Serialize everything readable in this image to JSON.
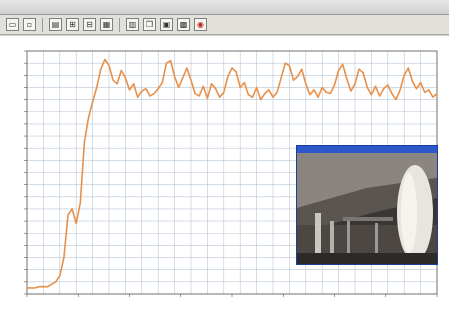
{
  "window": {
    "title": ""
  },
  "toolbar": {
    "buttons": [
      "open-icon",
      "save-icon",
      "print-icon",
      "zoom-in-icon",
      "zoom-out-icon",
      "grid-icon",
      "table-icon",
      "copy-icon",
      "paste-icon",
      "chart-icon",
      "marker-icon",
      "record-icon"
    ]
  },
  "colors": {
    "line": "#e8904a",
    "grid": "#b8c6d4",
    "axis": "#555555",
    "inset_title": "#2e57c9"
  },
  "chart_data": {
    "type": "line",
    "title": "",
    "xlabel": "",
    "ylabel": "",
    "ylim": [
      0,
      20
    ],
    "xlim": [
      0,
      100
    ],
    "grid": true,
    "series": [
      {
        "values": [
          [
            0,
            0.5
          ],
          [
            1,
            0.5
          ],
          [
            2,
            0.5
          ],
          [
            3,
            0.6
          ],
          [
            4,
            0.6
          ],
          [
            5,
            0.6
          ],
          [
            6,
            0.8
          ],
          [
            7,
            1.0
          ],
          [
            8,
            1.5
          ],
          [
            9,
            3.0
          ],
          [
            10,
            6.5
          ],
          [
            11,
            7.0
          ],
          [
            12,
            5.8
          ],
          [
            13,
            7.5
          ],
          [
            14,
            12.5
          ],
          [
            15,
            14.5
          ],
          [
            16,
            15.8
          ],
          [
            17,
            17.0
          ],
          [
            18,
            18.5
          ],
          [
            19,
            19.3
          ],
          [
            20,
            18.8
          ],
          [
            21,
            17.6
          ],
          [
            22,
            17.3
          ],
          [
            23,
            18.4
          ],
          [
            24,
            17.8
          ],
          [
            25,
            16.8
          ],
          [
            26,
            17.3
          ],
          [
            27,
            16.2
          ],
          [
            28,
            16.7
          ],
          [
            29,
            16.9
          ],
          [
            30,
            16.3
          ],
          [
            31,
            16.5
          ],
          [
            32,
            16.9
          ],
          [
            33,
            17.4
          ],
          [
            34,
            19.0
          ],
          [
            35,
            19.2
          ],
          [
            36,
            17.9
          ],
          [
            37,
            17.0
          ],
          [
            38,
            17.8
          ],
          [
            39,
            18.6
          ],
          [
            40,
            17.6
          ],
          [
            41,
            16.5
          ],
          [
            42,
            16.3
          ],
          [
            43,
            17.1
          ],
          [
            44,
            16.1
          ],
          [
            45,
            17.3
          ],
          [
            46,
            16.9
          ],
          [
            47,
            16.2
          ],
          [
            48,
            16.6
          ],
          [
            49,
            17.9
          ],
          [
            50,
            18.6
          ],
          [
            51,
            18.3
          ],
          [
            52,
            17.0
          ],
          [
            53,
            17.4
          ],
          [
            54,
            16.4
          ],
          [
            55,
            16.2
          ],
          [
            56,
            17.0
          ],
          [
            57,
            16.0
          ],
          [
            58,
            16.5
          ],
          [
            59,
            16.8
          ],
          [
            60,
            16.2
          ],
          [
            61,
            16.6
          ],
          [
            62,
            17.8
          ],
          [
            63,
            19.0
          ],
          [
            64,
            18.8
          ],
          [
            65,
            17.6
          ],
          [
            66,
            17.9
          ],
          [
            67,
            18.5
          ],
          [
            68,
            17.3
          ],
          [
            69,
            16.4
          ],
          [
            70,
            16.8
          ],
          [
            71,
            16.2
          ],
          [
            72,
            17.0
          ],
          [
            73,
            16.6
          ],
          [
            74,
            16.5
          ],
          [
            75,
            17.2
          ],
          [
            76,
            18.4
          ],
          [
            77,
            18.9
          ],
          [
            78,
            17.7
          ],
          [
            79,
            16.7
          ],
          [
            80,
            17.3
          ],
          [
            81,
            18.5
          ],
          [
            82,
            18.2
          ],
          [
            83,
            17.0
          ],
          [
            84,
            16.4
          ],
          [
            85,
            17.1
          ],
          [
            86,
            16.3
          ],
          [
            87,
            16.9
          ],
          [
            88,
            17.2
          ],
          [
            89,
            16.5
          ],
          [
            90,
            16.0
          ],
          [
            91,
            16.8
          ],
          [
            92,
            18.0
          ],
          [
            93,
            18.6
          ],
          [
            94,
            17.5
          ],
          [
            95,
            16.9
          ],
          [
            96,
            17.4
          ],
          [
            97,
            16.6
          ],
          [
            98,
            16.8
          ],
          [
            99,
            16.2
          ],
          [
            100,
            16.5
          ]
        ]
      }
    ]
  }
}
